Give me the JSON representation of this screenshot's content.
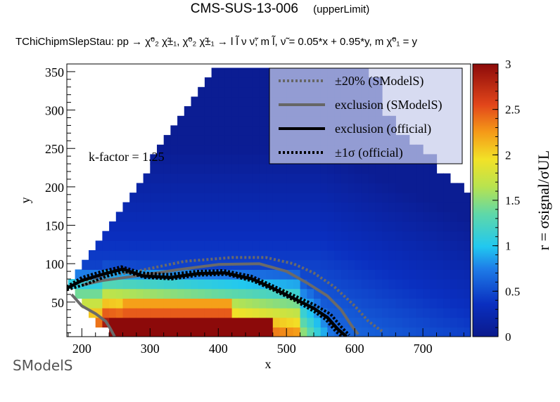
{
  "title": "CMS-SUS-13-006",
  "title_note": "(upperLimit)",
  "subtitle": "TChiChipmSlepStau: pp → χ̃⁰₂ χ̃±₁, χ̃⁰₂ χ̃±₁ → l l̃ ν ν̃; m l̃, ν̃ = 0.05*x + 0.95*y, m χ̃⁰₁ = y",
  "kfactor_label": "k-factor = 1.25",
  "logo_text": "SModelS",
  "chart_data": {
    "type": "heatmap",
    "xlabel": "x",
    "ylabel": "y",
    "xlim": [
      178,
      770
    ],
    "ylim": [
      5,
      360
    ],
    "xticks": [
      200,
      300,
      400,
      500,
      600,
      700
    ],
    "yticks": [
      50,
      100,
      150,
      200,
      250,
      300,
      350
    ],
    "zlabel": "r = σsignal/σUL",
    "zlim": [
      0,
      3
    ],
    "zticks": [
      "0",
      "0.5",
      "1",
      "1.5",
      "2",
      "2.5",
      "3"
    ],
    "legend_position": "top-right",
    "legend": [
      {
        "label": "±20% (SModelS)",
        "color": "#666666",
        "style": "dotted"
      },
      {
        "label": "exclusion (SModelS)",
        "color": "#666666",
        "style": "solid"
      },
      {
        "label": "exclusion (official)",
        "color": "#000000",
        "style": "solid"
      },
      {
        "label": "±1σ (official)",
        "color": "#000000",
        "style": "dotted"
      }
    ],
    "grid": {
      "x_start": 180,
      "x_step": 10,
      "y_start": 5,
      "y_step": 12.5
    },
    "region_boundary": [
      [
        180,
        67
      ],
      [
        250,
        170
      ],
      [
        300,
        235
      ],
      [
        350,
        300
      ],
      [
        390,
        345
      ],
      [
        770,
        345
      ],
      [
        770,
        190
      ],
      [
        640,
        225
      ],
      [
        620,
        240
      ],
      [
        600,
        270
      ],
      [
        585,
        300
      ],
      [
        560,
        330
      ],
      [
        520,
        350
      ]
    ],
    "series": [
      {
        "name": "±20% (SModelS)",
        "x": [
          200,
          230,
          280,
          350,
          420,
          470,
          510,
          540,
          570,
          600,
          620,
          640
        ],
        "y": [
          77,
          83,
          90,
          103,
          108,
          108,
          100,
          88,
          70,
          45,
          25,
          12
        ]
      },
      {
        "name": "exclusion (SModelS)",
        "x": [
          200,
          230,
          280,
          340,
          400,
          460,
          500,
          530,
          560,
          580,
          595,
          605
        ],
        "y": [
          72,
          78,
          84,
          92,
          99,
          100,
          90,
          75,
          58,
          40,
          20,
          8
        ]
      },
      {
        "name": "exclusion (official)",
        "x": [
          178,
          200,
          230,
          260,
          290,
          330,
          370,
          410,
          450,
          480,
          510,
          540,
          560,
          575,
          588
        ],
        "y": [
          68,
          78,
          86,
          93,
          84,
          82,
          87,
          88,
          80,
          68,
          55,
          42,
          30,
          15,
          5
        ]
      },
      {
        "name": "exclusion (official) -1σ",
        "x": [
          178,
          205,
          235,
          262,
          292,
          332,
          372,
          412,
          452,
          482,
          512,
          540,
          558,
          572,
          584
        ],
        "y": [
          66,
          73,
          83,
          90,
          82,
          80,
          85,
          86,
          77,
          65,
          52,
          38,
          27,
          12,
          3
        ]
      },
      {
        "name": "exclusion (official) +1σ",
        "x": [
          178,
          200,
          230,
          258,
          288,
          328,
          368,
          408,
          448,
          478,
          510,
          542,
          565,
          580,
          592
        ],
        "y": [
          70,
          82,
          90,
          96,
          88,
          86,
          90,
          91,
          84,
          72,
          59,
          46,
          34,
          18,
          7
        ]
      },
      {
        "name": "SModelS small-mass exclusion",
        "x": [
          185,
          200,
          220,
          235,
          242,
          248
        ],
        "y": [
          60,
          45,
          35,
          25,
          15,
          5
        ]
      }
    ]
  }
}
